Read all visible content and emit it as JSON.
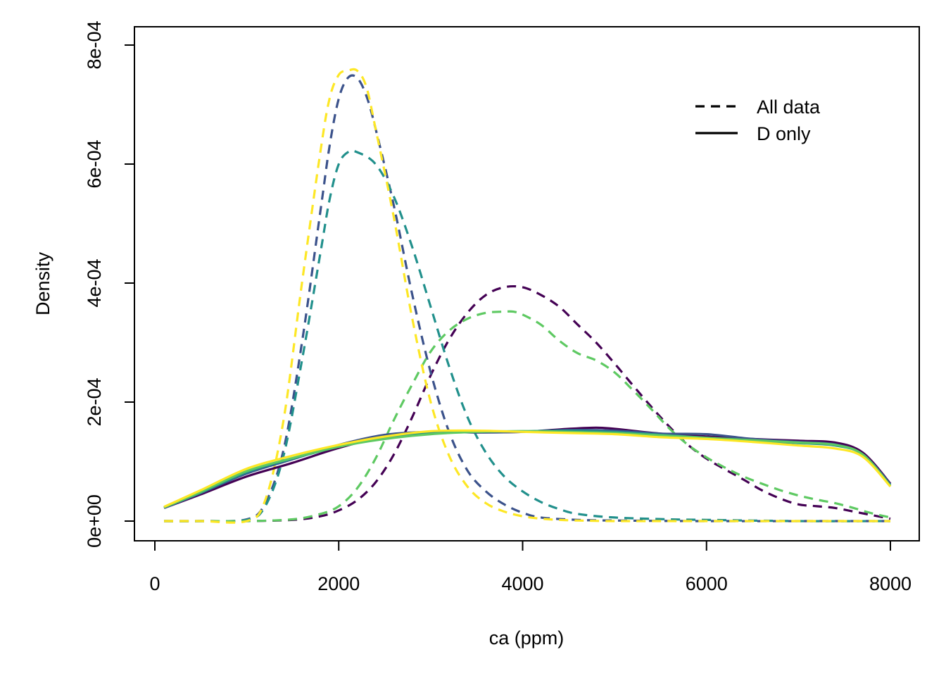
{
  "chart_data": {
    "type": "line",
    "title": "",
    "xlabel": "ca (ppm)",
    "ylabel": "Density",
    "xlim": [
      0,
      8000
    ],
    "ylim": [
      0,
      0.0008
    ],
    "x_ticks": [
      0,
      2000,
      4000,
      6000,
      8000
    ],
    "x_tick_labels": [
      "0",
      "2000",
      "4000",
      "6000",
      "8000"
    ],
    "y_ticks": [
      0,
      0.0002,
      0.0004,
      0.0006,
      0.0008
    ],
    "y_tick_labels": [
      "0e+00",
      "2e-04",
      "4e-04",
      "6e-04",
      "8e-04"
    ],
    "grid": false,
    "legend": {
      "position": "top-right",
      "entries": [
        {
          "label": "All data",
          "linestyle": "dashed"
        },
        {
          "label": "D only",
          "linestyle": "solid"
        }
      ]
    },
    "series": [
      {
        "color": "#440154",
        "linestyle": "dashed",
        "x": [
          100,
          500,
          1000,
          1500,
          1800,
          2000,
          2200,
          2400,
          2600,
          2800,
          3000,
          3200,
          3400,
          3600,
          3800,
          4000,
          4200,
          4400,
          4600,
          4800,
          5000,
          5200,
          5400,
          5600,
          5800,
          6000,
          6200,
          6400,
          6600,
          6800,
          7000,
          7200,
          7400,
          7600,
          7800,
          8000
        ],
        "y": [
          0,
          0,
          0,
          2e-06,
          8e-06,
          1.8e-05,
          3.5e-05,
          6.5e-05,
          0.000112,
          0.000175,
          0.000245,
          0.000305,
          0.00035,
          0.00038,
          0.000393,
          0.000393,
          0.00038,
          0.00036,
          0.00033,
          0.0003,
          0.000265,
          0.000228,
          0.000192,
          0.000158,
          0.000128,
          0.000105,
          8.7e-05,
          7e-05,
          5.2e-05,
          3.8e-05,
          2.8e-05,
          2.5e-05,
          2.2e-05,
          1.6e-05,
          1e-05,
          4e-06
        ]
      },
      {
        "color": "#3b528b",
        "linestyle": "dashed",
        "x": [
          100,
          500,
          1000,
          1200,
          1400,
          1600,
          1800,
          1900,
          2000,
          2100,
          2200,
          2300,
          2400,
          2600,
          2800,
          3000,
          3200,
          3400,
          3600,
          3800,
          4000,
          4200,
          4600,
          5000,
          6000,
          8000
        ],
        "y": [
          0,
          0,
          3e-06,
          3e-05,
          0.00012,
          0.0003,
          0.00052,
          0.00063,
          0.00071,
          0.000745,
          0.000745,
          0.000715,
          0.00066,
          0.00053,
          0.00038,
          0.00025,
          0.00015,
          8.5e-05,
          5e-05,
          2.8e-05,
          1.4e-05,
          6e-06,
          2e-06,
          1e-06,
          0,
          0
        ]
      },
      {
        "color": "#21908c",
        "linestyle": "dashed",
        "x": [
          100,
          500,
          1000,
          1200,
          1400,
          1600,
          1800,
          1900,
          2000,
          2100,
          2200,
          2400,
          2600,
          2800,
          3000,
          3200,
          3400,
          3600,
          3800,
          4000,
          4200,
          4400,
          4600,
          5000,
          5600,
          6000,
          7000,
          8000
        ],
        "y": [
          0,
          0,
          2e-06,
          2.5e-05,
          0.00011,
          0.00027,
          0.00045,
          0.00054,
          0.0006,
          0.00062,
          0.00062,
          0.0006,
          0.000545,
          0.00046,
          0.00036,
          0.00026,
          0.000175,
          0.000115,
          7.5e-05,
          5e-05,
          3.2e-05,
          2e-05,
          1.2e-05,
          6e-06,
          3e-06,
          2e-06,
          0,
          0
        ]
      },
      {
        "color": "#5ec962",
        "linestyle": "dashed",
        "x": [
          100,
          500,
          1000,
          1500,
          1800,
          2000,
          2200,
          2400,
          2600,
          2800,
          3000,
          3200,
          3400,
          3600,
          3800,
          3900,
          4000,
          4200,
          4400,
          4600,
          4800,
          5000,
          5200,
          5400,
          5600,
          5800,
          6000,
          6200,
          6400,
          6600,
          6800,
          7000,
          7200,
          7400,
          7600,
          7800,
          8000
        ],
        "y": [
          0,
          0,
          0,
          3e-06,
          1.2e-05,
          2.5e-05,
          5.5e-05,
          0.000105,
          0.00017,
          0.00023,
          0.000285,
          0.00032,
          0.00034,
          0.00035,
          0.000352,
          0.000352,
          0.000347,
          0.00033,
          0.000303,
          0.000282,
          0.00027,
          0.00025,
          0.00022,
          0.000188,
          0.000155,
          0.000128,
          0.000107,
          9e-05,
          7.5e-05,
          6.3e-05,
          5.2e-05,
          4.3e-05,
          3.6e-05,
          3e-05,
          2.2e-05,
          1.3e-05,
          6e-06
        ]
      },
      {
        "color": "#fde725",
        "linestyle": "dashed",
        "x": [
          100,
          500,
          1000,
          1200,
          1400,
          1600,
          1800,
          1900,
          2000,
          2100,
          2200,
          2300,
          2400,
          2600,
          2800,
          3000,
          3200,
          3400,
          3600,
          3800,
          4000,
          4200,
          4400,
          4600,
          5000,
          6000,
          8000
        ],
        "y": [
          0,
          0,
          0,
          3.5e-05,
          0.00017,
          0.0004,
          0.00062,
          0.00071,
          0.00075,
          0.000757,
          0.000757,
          0.00073,
          0.00066,
          0.00051,
          0.00034,
          0.0002,
          0.00011,
          5.8e-05,
          3e-05,
          1.6e-05,
          8e-06,
          4e-06,
          2e-06,
          1e-06,
          0,
          0,
          0
        ]
      },
      {
        "color": "#440154",
        "linestyle": "solid",
        "x": [
          100,
          500,
          1000,
          1500,
          2000,
          2500,
          3000,
          3500,
          4000,
          4500,
          4800,
          5000,
          5500,
          6000,
          6500,
          7000,
          7400,
          7700,
          8000
        ],
        "y": [
          2.2e-05,
          4.5e-05,
          7.5e-05,
          9.8e-05,
          0.000123,
          0.000142,
          0.00015,
          0.000149,
          0.00015,
          0.000155,
          0.000157,
          0.000155,
          0.000147,
          0.000142,
          0.000138,
          0.000135,
          0.000132,
          0.000115,
          6.3e-05
        ]
      },
      {
        "color": "#3b528b",
        "linestyle": "solid",
        "x": [
          100,
          500,
          1000,
          1500,
          2000,
          2500,
          3000,
          3500,
          4000,
          4500,
          5000,
          5500,
          6000,
          6500,
          7000,
          7400,
          7700,
          8000
        ],
        "y": [
          2.2e-05,
          4.7e-05,
          8e-05,
          0.000104,
          0.000128,
          0.000145,
          0.00015,
          0.000149,
          0.00015,
          0.000153,
          0.000152,
          0.000147,
          0.000146,
          0.000138,
          0.000133,
          0.000129,
          0.000112,
          6.2e-05
        ]
      },
      {
        "color": "#21908c",
        "linestyle": "solid",
        "x": [
          100,
          500,
          1000,
          1500,
          2000,
          2500,
          3000,
          3500,
          4000,
          4500,
          5000,
          5500,
          6000,
          6500,
          7000,
          7400,
          7700,
          8000
        ],
        "y": [
          2.3e-05,
          4.8e-05,
          8.2e-05,
          0.000105,
          0.000125,
          0.00014,
          0.000148,
          0.00015,
          0.000151,
          0.000152,
          0.00015,
          0.000145,
          0.00014,
          0.000135,
          0.000131,
          0.000127,
          0.000112,
          6e-05
        ]
      },
      {
        "color": "#5ec962",
        "linestyle": "solid",
        "x": [
          100,
          500,
          1000,
          1500,
          2000,
          2500,
          3000,
          3500,
          4000,
          4500,
          5000,
          5500,
          6000,
          6500,
          7000,
          7400,
          7700,
          8000
        ],
        "y": [
          2.3e-05,
          4.9e-05,
          8.4e-05,
          0.000106,
          0.000125,
          0.000138,
          0.000146,
          0.00015,
          0.000151,
          0.00015,
          0.000148,
          0.000144,
          0.00014,
          0.000136,
          0.000132,
          0.000128,
          0.000112,
          5.9e-05
        ]
      },
      {
        "color": "#fde725",
        "linestyle": "solid",
        "x": [
          100,
          500,
          1000,
          1500,
          2000,
          2500,
          3000,
          3500,
          4000,
          4500,
          5000,
          5500,
          6000,
          6500,
          7000,
          7400,
          7700,
          8000
        ],
        "y": [
          2.4e-05,
          5.2e-05,
          8.8e-05,
          0.00011,
          0.000128,
          0.000142,
          0.000151,
          0.000152,
          0.00015,
          0.000148,
          0.000146,
          0.000141,
          0.000138,
          0.000133,
          0.000127,
          0.000122,
          0.000108,
          5.8e-05
        ]
      }
    ]
  }
}
